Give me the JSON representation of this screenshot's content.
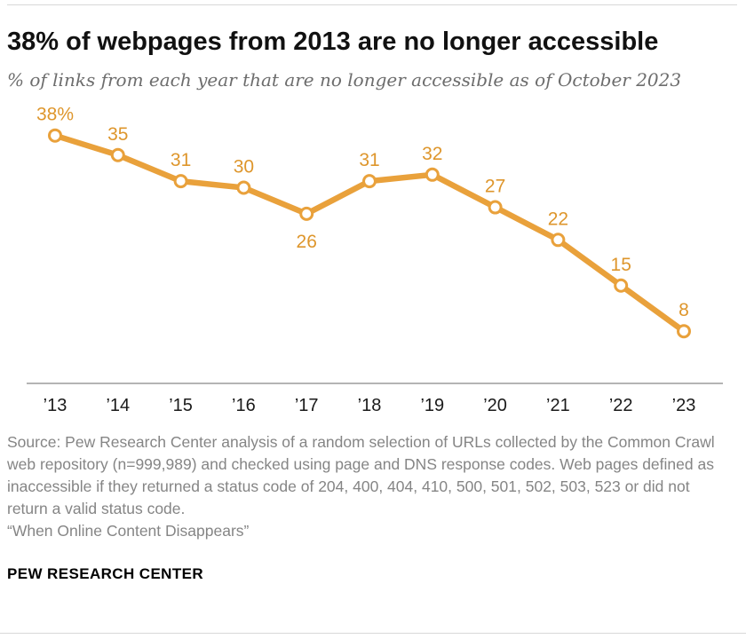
{
  "header": {
    "title": "38% of webpages from 2013 are no longer accessible",
    "subtitle": "% of links from each year that are no longer accessible as of October 2023"
  },
  "chart_data": {
    "type": "line",
    "categories": [
      "’13",
      "’14",
      "’15",
      "’16",
      "’17",
      "’18",
      "’19",
      "’20",
      "’21",
      "’22",
      "’23"
    ],
    "values": [
      38,
      35,
      31,
      30,
      26,
      31,
      32,
      27,
      22,
      15,
      8
    ],
    "point_labels": [
      "38%",
      "35",
      "31",
      "30",
      "26",
      "31",
      "32",
      "27",
      "22",
      "15",
      "8"
    ],
    "label_below": [
      false,
      false,
      false,
      false,
      true,
      false,
      false,
      false,
      false,
      false,
      false
    ],
    "title": "38% of webpages from 2013 are no longer accessible",
    "xlabel": "",
    "ylabel": "",
    "ylim": [
      0,
      43
    ],
    "grid": false,
    "legend": "none",
    "line_color": "#E9A13B",
    "label_color": "#DE962C",
    "marker": "open-circle",
    "axis_color": "#9b9b9b",
    "tick_color": "#1a1a1a"
  },
  "footer": {
    "source": "Source: Pew Research Center analysis of a random selection of URLs collected by the Common Crawl web repository (n=999,989) and checked using page and DNS response codes. Web pages defined as inaccessible if they returned a status code of 204, 400, 404, 410, 500, 501, 502, 503, 523 or did not return a valid status code.",
    "report": "“When Online Content Disappears”",
    "brand": "PEW RESEARCH CENTER"
  }
}
